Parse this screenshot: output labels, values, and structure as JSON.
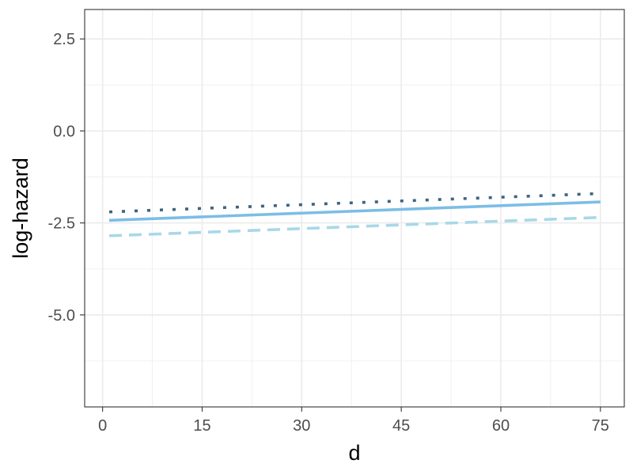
{
  "chart_data": {
    "type": "line",
    "title": "",
    "xlabel": "d",
    "ylabel": "log-hazard",
    "xlim": [
      -2.7,
      78.6
    ],
    "ylim": [
      -7.5,
      3.3
    ],
    "xticks": [
      0,
      15,
      30,
      45,
      60,
      75
    ],
    "xtick_labels": [
      "0",
      "15",
      "30",
      "45",
      "60",
      "75"
    ],
    "yticks": [
      2.5,
      0.0,
      -2.5,
      -5.0
    ],
    "ytick_labels": [
      "2.5",
      "0.0",
      "-2.5",
      "-5.0"
    ],
    "grid": true,
    "legend": "none",
    "series": [
      {
        "x": [
          1,
          75
        ],
        "y": [
          -2.2,
          -1.7
        ],
        "color": "#3d6480",
        "dash": "dotted"
      },
      {
        "x": [
          1,
          75
        ],
        "y": [
          -2.43,
          -1.93
        ],
        "color": "#7cbde6",
        "dash": "solid"
      },
      {
        "x": [
          1,
          75
        ],
        "y": [
          -2.85,
          -2.35
        ],
        "color": "#a8d8e8",
        "dash": "dashed"
      }
    ]
  }
}
